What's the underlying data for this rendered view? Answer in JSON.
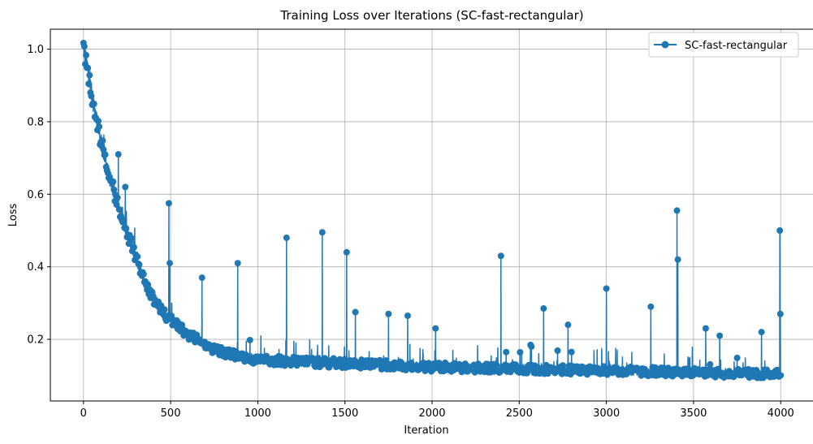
{
  "chart_data": {
    "type": "line",
    "title": "Training Loss over Iterations (SC-fast-rectangular)",
    "xlabel": "Iteration",
    "ylabel": "Loss",
    "xlim": [
      -190,
      4190
    ],
    "ylim": [
      0.03,
      1.055
    ],
    "xticks": [
      0,
      500,
      1000,
      1500,
      2000,
      2500,
      3000,
      3500,
      4000
    ],
    "yticks": [
      0.2,
      0.4,
      0.6,
      0.8,
      1.0
    ],
    "xtick_labels": [
      "0",
      "500",
      "1000",
      "1500",
      "2000",
      "2500",
      "3000",
      "3500",
      "4000"
    ],
    "ytick_labels": [
      "0.2",
      "0.4",
      "0.6",
      "0.8",
      "1.0"
    ],
    "grid": true,
    "legend_position": "top-right",
    "color": "#1f77b4",
    "series": [
      {
        "name": "SC-fast-rectangular",
        "curve_points": [
          [
            0,
            1.0
          ],
          [
            50,
            0.86
          ],
          [
            100,
            0.74
          ],
          [
            150,
            0.64
          ],
          [
            200,
            0.56
          ],
          [
            250,
            0.49
          ],
          [
            300,
            0.42
          ],
          [
            350,
            0.36
          ],
          [
            400,
            0.31
          ],
          [
            450,
            0.27
          ],
          [
            500,
            0.25
          ],
          [
            600,
            0.21
          ],
          [
            700,
            0.18
          ],
          [
            800,
            0.16
          ],
          [
            900,
            0.15
          ],
          [
            1000,
            0.14
          ],
          [
            1200,
            0.135
          ],
          [
            1500,
            0.13
          ],
          [
            2000,
            0.12
          ],
          [
            2500,
            0.115
          ],
          [
            3000,
            0.11
          ],
          [
            3500,
            0.105
          ],
          [
            4000,
            0.1
          ]
        ],
        "spikes": [
          [
            200,
            0.71
          ],
          [
            240,
            0.62
          ],
          [
            490,
            0.575
          ],
          [
            495,
            0.41
          ],
          [
            680,
            0.37
          ],
          [
            885,
            0.41
          ],
          [
            1165,
            0.48
          ],
          [
            1370,
            0.495
          ],
          [
            1510,
            0.44
          ],
          [
            1560,
            0.275
          ],
          [
            1750,
            0.27
          ],
          [
            1860,
            0.265
          ],
          [
            2020,
            0.23
          ],
          [
            2395,
            0.43
          ],
          [
            2640,
            0.285
          ],
          [
            2780,
            0.24
          ],
          [
            3000,
            0.34
          ],
          [
            3255,
            0.29
          ],
          [
            3405,
            0.555
          ],
          [
            3410,
            0.42
          ],
          [
            3570,
            0.23
          ],
          [
            3650,
            0.21
          ],
          [
            3890,
            0.22
          ],
          [
            3995,
            0.5
          ],
          [
            3998,
            0.27
          ]
        ],
        "noise_amplitude": 0.035,
        "sample_every": 5
      }
    ]
  }
}
